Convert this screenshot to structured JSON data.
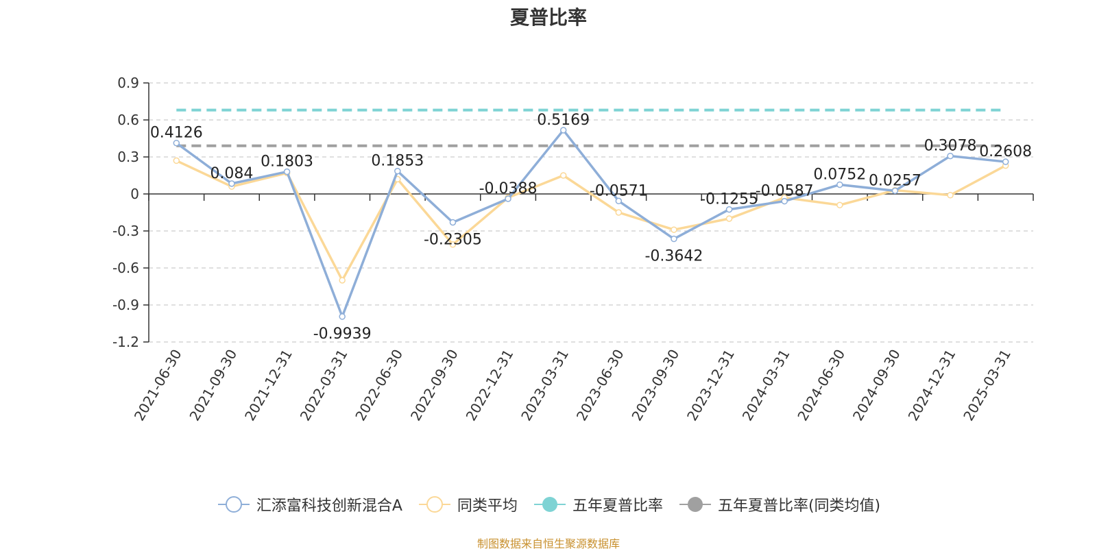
{
  "title": "夏普比率",
  "footer": "制图数据来自恒生聚源数据库",
  "chart_data": {
    "type": "line",
    "title": "夏普比率",
    "xlabel": "",
    "ylabel": "",
    "ylim": [
      -1.2,
      0.9
    ],
    "yticks": [
      0.9,
      0.6,
      0.3,
      0,
      -0.3,
      -0.6,
      -0.9,
      -1.2
    ],
    "ytick_labels": [
      "0.9",
      "0.6",
      "0.3",
      "0",
      "-0.3",
      "-0.6",
      "-0.9",
      "-1.2"
    ],
    "grid": true,
    "legend_position": "bottom",
    "categories": [
      "2021-06-30",
      "2021-09-30",
      "2021-12-31",
      "2022-03-31",
      "2022-06-30",
      "2022-09-30",
      "2022-12-31",
      "2023-03-31",
      "2023-06-30",
      "2023-09-30",
      "2023-12-31",
      "2024-03-31",
      "2024-06-30",
      "2024-09-30",
      "2024-12-31",
      "2025-03-31"
    ],
    "series": [
      {
        "name": "汇添富科技创新混合A",
        "color": "#8eaed8",
        "values": [
          0.4126,
          0.084,
          0.1803,
          -0.9939,
          0.1853,
          -0.2305,
          -0.0388,
          0.5169,
          -0.0571,
          -0.3642,
          -0.1255,
          -0.0587,
          0.0752,
          0.0257,
          0.3078,
          0.2608
        ],
        "labels": [
          "0.4126",
          "0.084",
          "0.1803",
          "-0.9939",
          "0.1853",
          "-0.2305",
          "-0.0388",
          "0.5169",
          "-0.0571",
          "-0.3642",
          "-0.1255",
          "-0.0587",
          "0.0752",
          "0.0257",
          "0.3078",
          "0.2608"
        ]
      },
      {
        "name": "同类平均",
        "color": "#fbd897",
        "values": [
          0.27,
          0.06,
          0.17,
          -0.7,
          0.12,
          -0.41,
          -0.03,
          0.15,
          -0.15,
          -0.29,
          -0.2,
          -0.03,
          -0.09,
          0.03,
          -0.01,
          0.23
        ]
      },
      {
        "name": "五年夏普比率",
        "color": "#7ed3d4",
        "constant": 0.68
      },
      {
        "name": "五年夏普比率(同类均值)",
        "color": "#a0a0a0",
        "constant": 0.39
      }
    ]
  }
}
